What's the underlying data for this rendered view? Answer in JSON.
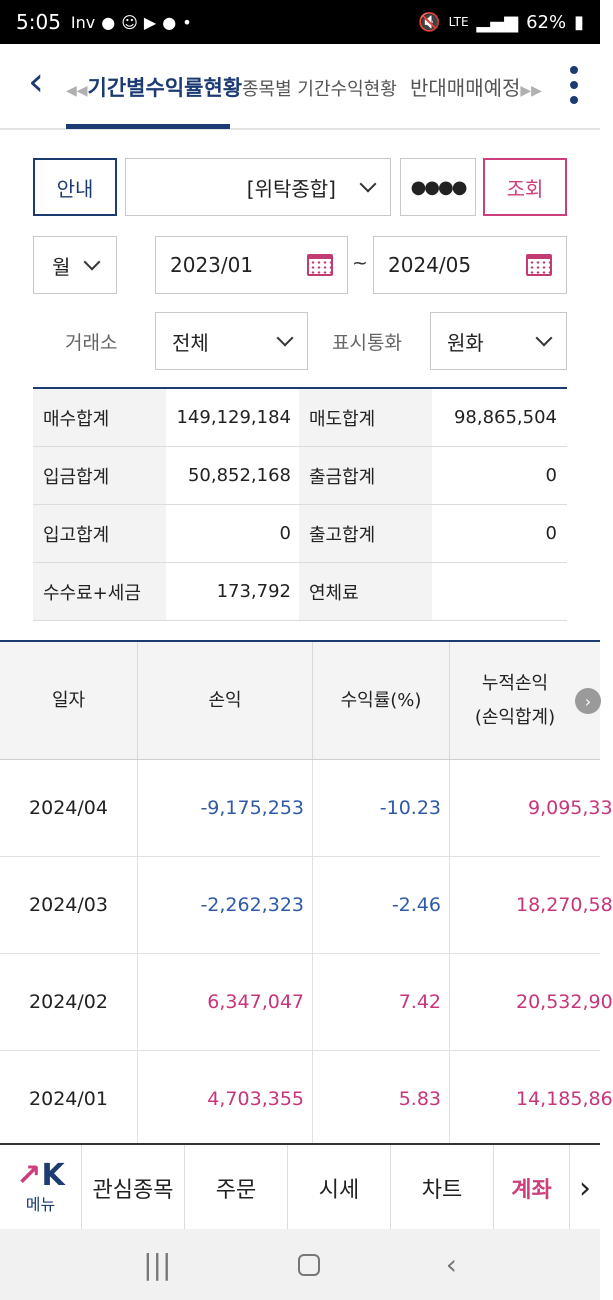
{
  "status": {
    "time": "5:05",
    "carrier_icons": "Inv",
    "network": "LTE",
    "battery": "62%"
  },
  "tabs": [
    {
      "label": "기간별수익률현황"
    },
    {
      "label": "종목별 기간수익현황"
    },
    {
      "label": "반대매매예정"
    }
  ],
  "controls": {
    "guide_label": "안내",
    "account_type": "[위탁종합]",
    "password_mask": "●●●●",
    "search_label": "조회",
    "period_unit": "월",
    "start_date": "2023/01",
    "tilde": "~",
    "end_date": "2024/05",
    "exchange_label": "거래소",
    "exchange_value": "전체",
    "currency_label": "표시통화",
    "currency_value": "원화"
  },
  "summary": [
    {
      "l1": "매수합계",
      "v1": "149,129,184",
      "l2": "매도합계",
      "v2": "98,865,504"
    },
    {
      "l1": "입금합계",
      "v1": "50,852,168",
      "l2": "출금합계",
      "v2": "0"
    },
    {
      "l1": "입고합계",
      "v1": "0",
      "l2": "출고합계",
      "v2": "0"
    },
    {
      "l1": "수수료+세금",
      "v1": "173,792",
      "l2": "연체료",
      "v2": ""
    }
  ],
  "table": {
    "headers": {
      "date": "일자",
      "pnl": "손익",
      "rate": "수익률(%)",
      "cum_line1": "누적손익",
      "cum_line2": "(손익합계)"
    },
    "rows": [
      {
        "date": "2024/04",
        "pnl": "-9,175,253",
        "rate": "-10.23",
        "cum": "9,095,33"
      },
      {
        "date": "2024/03",
        "pnl": "-2,262,323",
        "rate": "-2.46",
        "cum": "18,270,58"
      },
      {
        "date": "2024/02",
        "pnl": "6,347,047",
        "rate": "7.42",
        "cum": "20,532,90"
      },
      {
        "date": "2024/01",
        "pnl": "4,703,355",
        "rate": "5.83",
        "cum": "14,185,86"
      }
    ]
  },
  "bottom_menu": {
    "menu_logo": "K",
    "menu_label": "메뉴",
    "items": [
      "관심종목",
      "주문",
      "시세",
      "차트",
      "계좌"
    ]
  },
  "colors": {
    "navy": "#1d3b73",
    "pink": "#cc3f7d",
    "negative": "#2f5aa8",
    "positive": "#c8357a"
  }
}
